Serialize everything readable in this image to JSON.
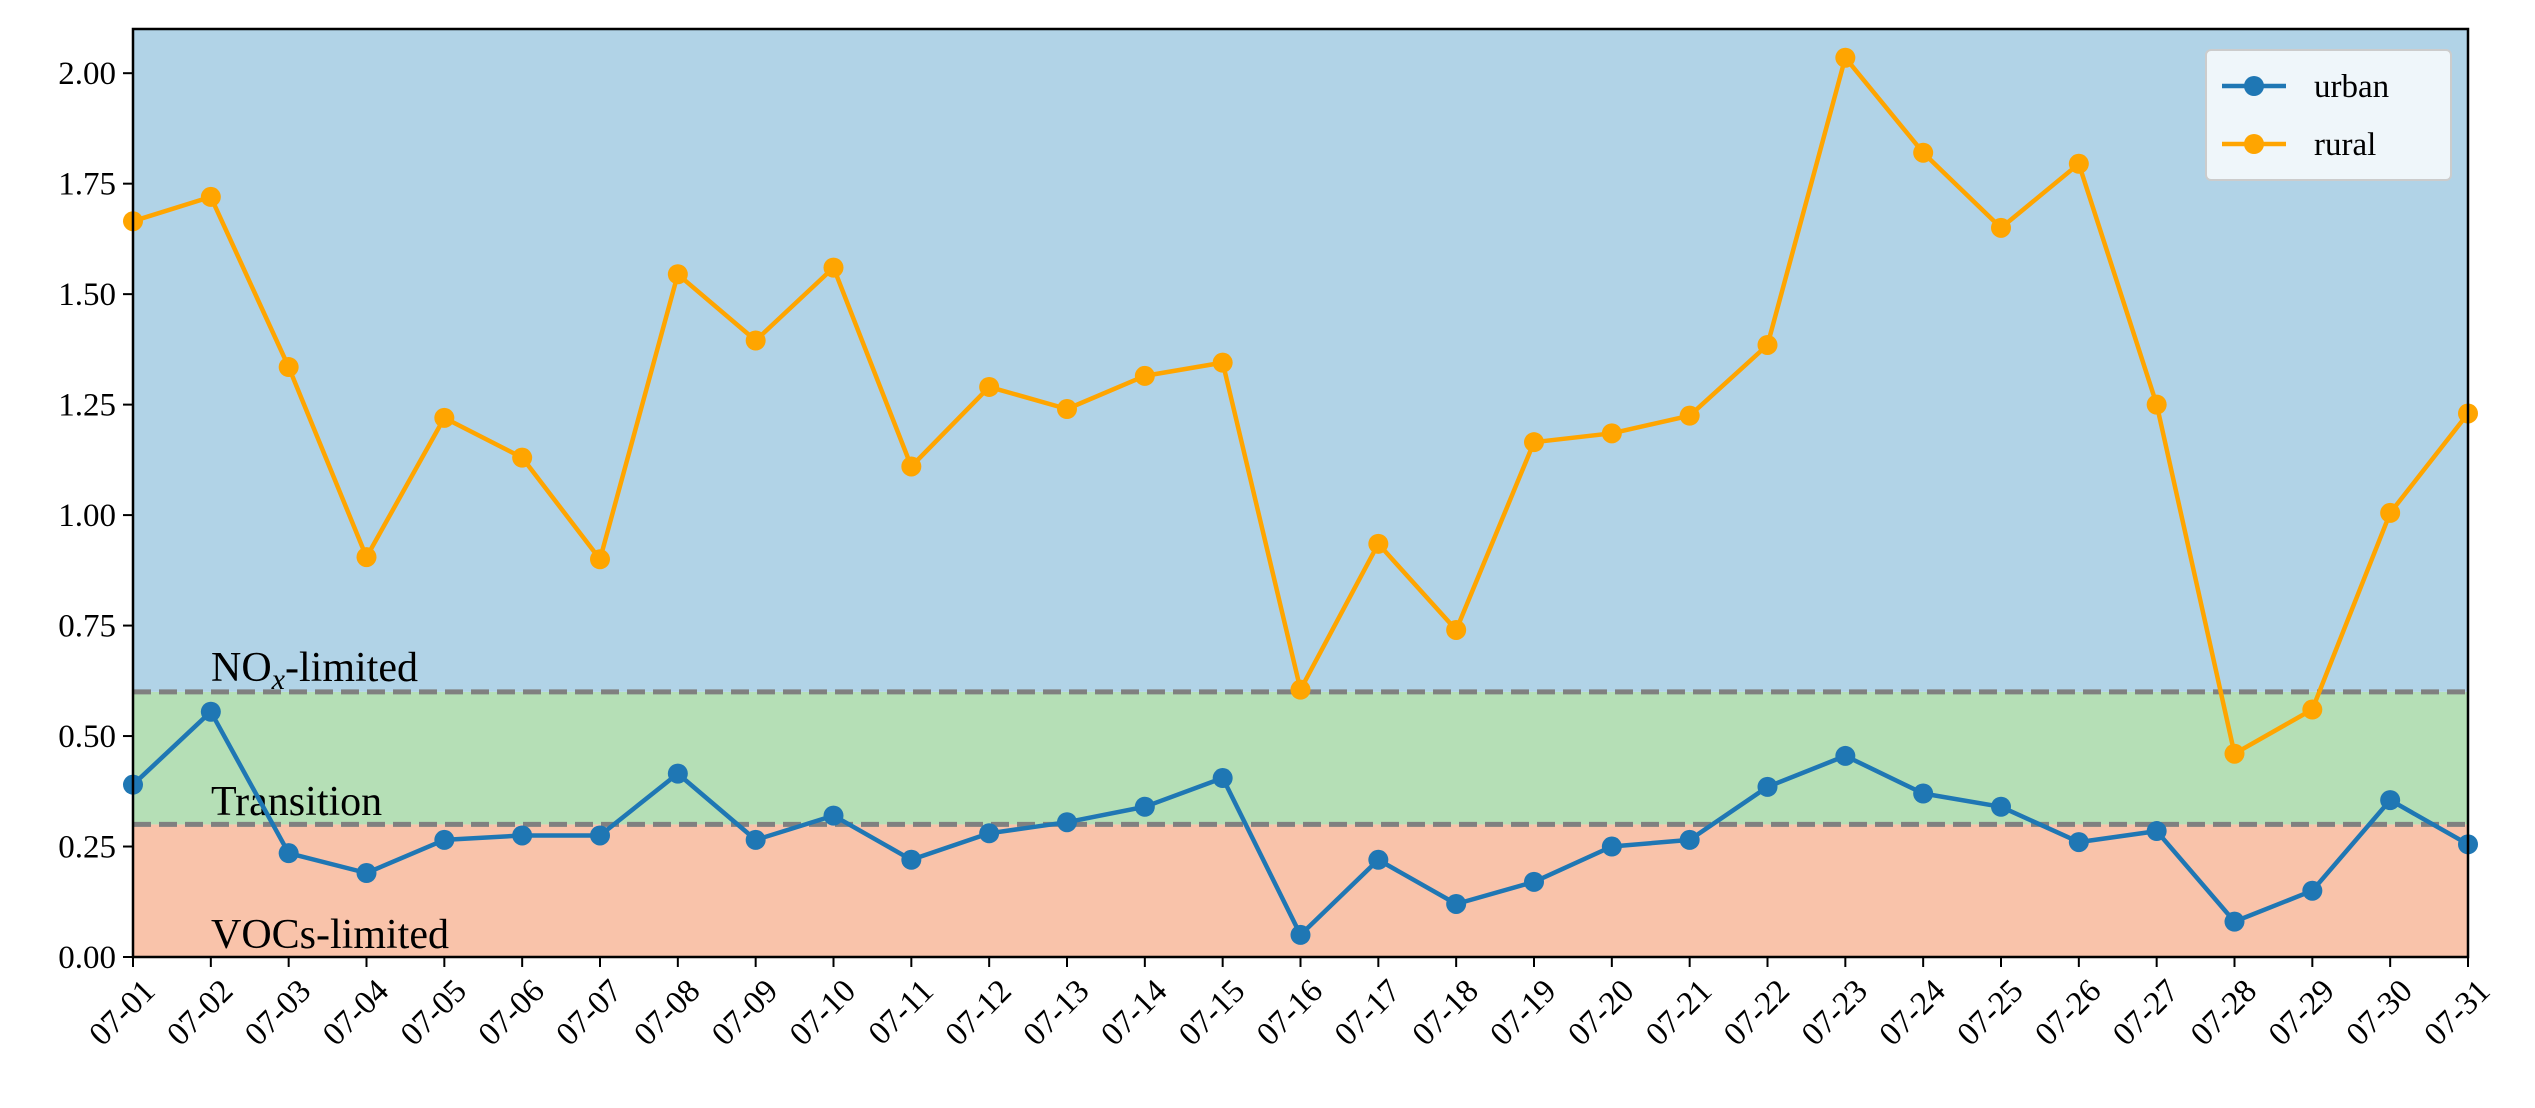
{
  "chart_data": {
    "type": "line",
    "categories": [
      "07-01",
      "07-02",
      "07-03",
      "07-04",
      "07-05",
      "07-06",
      "07-07",
      "07-08",
      "07-09",
      "07-10",
      "07-11",
      "07-12",
      "07-13",
      "07-14",
      "07-15",
      "07-16",
      "07-17",
      "07-18",
      "07-19",
      "07-20",
      "07-21",
      "07-22",
      "07-23",
      "07-24",
      "07-25",
      "07-26",
      "07-27",
      "07-28",
      "07-29",
      "07-30",
      "07-31"
    ],
    "series": [
      {
        "name": "urban",
        "color": "#1f77b4",
        "values": [
          0.39,
          0.555,
          0.235,
          0.19,
          0.265,
          0.275,
          0.275,
          0.415,
          0.265,
          0.32,
          0.22,
          0.28,
          0.305,
          0.34,
          0.405,
          0.05,
          0.22,
          0.12,
          0.17,
          0.25,
          0.265,
          0.385,
          0.455,
          0.37,
          0.34,
          0.26,
          0.285,
          0.08,
          0.15,
          0.355,
          0.255
        ]
      },
      {
        "name": "rural",
        "color": "#ffa500",
        "values": [
          1.665,
          1.72,
          1.335,
          0.905,
          1.22,
          1.13,
          0.9,
          1.545,
          1.395,
          1.56,
          1.11,
          1.29,
          1.24,
          1.315,
          1.345,
          0.605,
          0.935,
          0.74,
          1.165,
          1.185,
          1.225,
          1.385,
          2.035,
          1.82,
          1.65,
          1.795,
          1.25,
          0.46,
          0.56,
          1.005,
          1.23
        ]
      }
    ],
    "ylim": [
      0,
      2.1
    ],
    "yticks": [
      "0.00",
      "0.25",
      "0.50",
      "0.75",
      "1.00",
      "1.25",
      "1.50",
      "1.75",
      "2.00"
    ],
    "ytick_values": [
      0,
      0.25,
      0.5,
      0.75,
      1.0,
      1.25,
      1.5,
      1.75,
      2.0
    ],
    "thresholds": [
      0.6,
      0.3
    ],
    "threshold_color": "#808080",
    "regions": [
      {
        "label": "VOCs-limited",
        "from": 0,
        "to": 0.3,
        "color": "#f9c3aa"
      },
      {
        "label": "Transition",
        "from": 0.3,
        "to": 0.6,
        "color": "#b5dfb6"
      },
      {
        "label": "NOx-limited",
        "from": 0.6,
        "to": 2.1,
        "color": "#b1d3e7"
      }
    ],
    "region_labels": {
      "nox_main": "NO",
      "nox_sub": "x",
      "nox_rest": "-limited",
      "transition": "Transition",
      "vocs": "VOCs-limited"
    },
    "legend": {
      "position": "top-right",
      "entries": [
        "urban",
        "rural"
      ]
    },
    "grid": false,
    "xlabel": "",
    "ylabel": "",
    "title": ""
  }
}
